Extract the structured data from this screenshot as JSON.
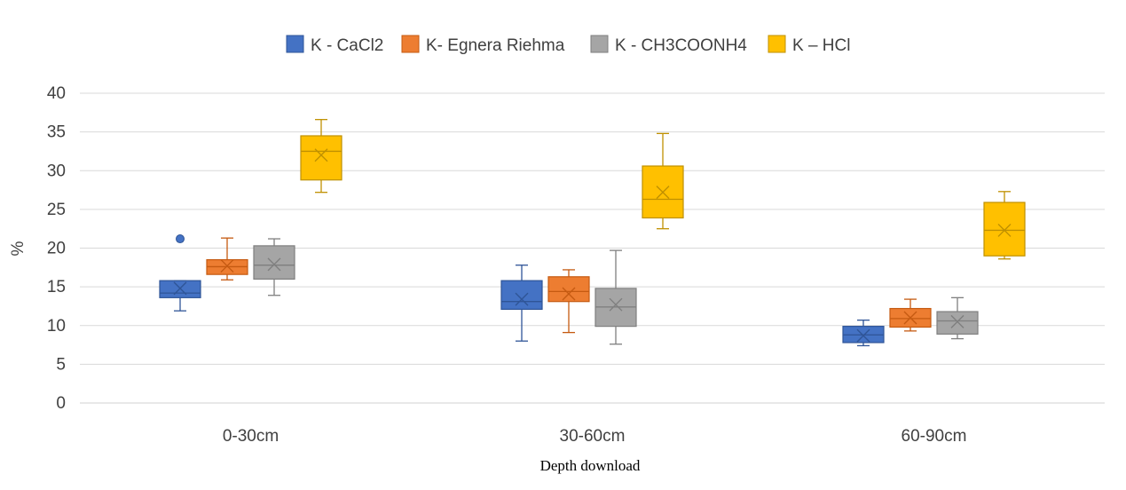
{
  "chart_data": {
    "type": "boxplot",
    "xlabel": "Depth download",
    "ylabel": "%",
    "ylim": [
      0,
      40
    ],
    "yticks": [
      0,
      5,
      10,
      15,
      20,
      25,
      30,
      35,
      40
    ],
    "grid": "horizontal",
    "legend_position": "top",
    "categories": [
      "0-30cm",
      "30-60cm",
      "60-90cm"
    ],
    "series": [
      {
        "name": "K - CaCl2",
        "color": "#4472C4",
        "stroke": "#2F5597",
        "boxes": [
          {
            "min": 11.9,
            "q1": 13.6,
            "median": 14.2,
            "q3": 15.8,
            "max": 15.8,
            "mean": 14.8,
            "outliers": [
              21.2
            ]
          },
          {
            "min": 8.0,
            "q1": 12.1,
            "median": 13.1,
            "q3": 15.8,
            "max": 17.8,
            "mean": 13.4,
            "outliers": []
          },
          {
            "min": 7.4,
            "q1": 7.8,
            "median": 8.8,
            "q3": 9.9,
            "max": 10.7,
            "mean": 8.7,
            "outliers": []
          }
        ]
      },
      {
        "name": "K- Egnera Riehma",
        "color": "#ED7D31",
        "stroke": "#C55A11",
        "boxes": [
          {
            "min": 15.9,
            "q1": 16.6,
            "median": 17.6,
            "q3": 18.5,
            "max": 21.3,
            "mean": 17.7,
            "outliers": []
          },
          {
            "min": 9.1,
            "q1": 13.1,
            "median": 14.4,
            "q3": 16.3,
            "max": 17.2,
            "mean": 14.1,
            "outliers": []
          },
          {
            "min": 9.3,
            "q1": 9.8,
            "median": 10.9,
            "q3": 12.2,
            "max": 13.4,
            "mean": 11.0,
            "outliers": []
          }
        ]
      },
      {
        "name": "K - CH3COONH4",
        "color": "#A5A5A5",
        "stroke": "#7F7F7F",
        "boxes": [
          {
            "min": 13.9,
            "q1": 16.0,
            "median": 17.8,
            "q3": 20.3,
            "max": 21.2,
            "mean": 17.9,
            "outliers": []
          },
          {
            "min": 7.6,
            "q1": 9.9,
            "median": 12.4,
            "q3": 14.8,
            "max": 19.7,
            "mean": 12.7,
            "outliers": []
          },
          {
            "min": 8.3,
            "q1": 8.9,
            "median": 10.6,
            "q3": 11.8,
            "max": 13.6,
            "mean": 10.5,
            "outliers": []
          }
        ]
      },
      {
        "name": "K – HCl",
        "color": "#FFC000",
        "stroke": "#BF9000",
        "boxes": [
          {
            "min": 27.2,
            "q1": 28.8,
            "median": 32.5,
            "q3": 34.5,
            "max": 36.6,
            "mean": 32.0,
            "outliers": []
          },
          {
            "min": 22.5,
            "q1": 23.9,
            "median": 26.3,
            "q3": 30.6,
            "max": 34.8,
            "mean": 27.2,
            "outliers": []
          },
          {
            "min": 18.6,
            "q1": 19.0,
            "median": 22.3,
            "q3": 25.9,
            "max": 27.3,
            "mean": 22.3,
            "outliers": []
          }
        ]
      }
    ]
  }
}
